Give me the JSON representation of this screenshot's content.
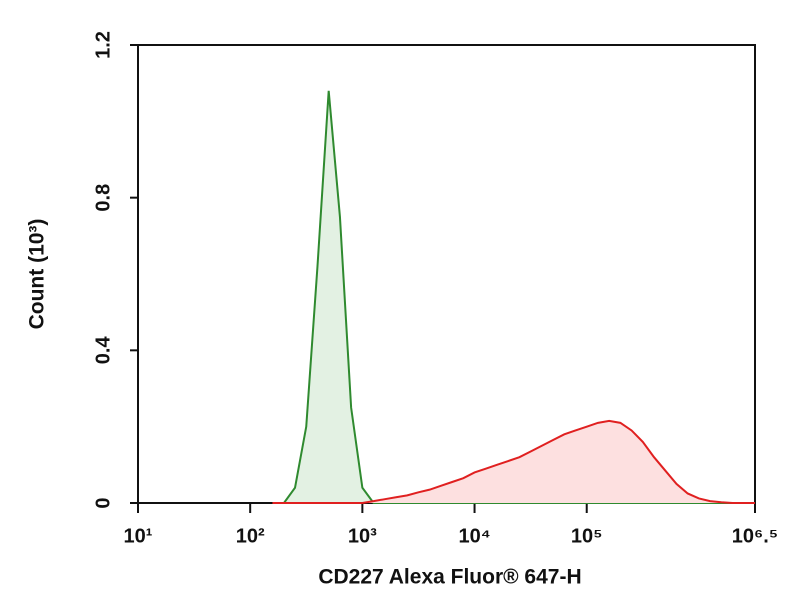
{
  "chart_data": {
    "type": "histogram",
    "xlabel": "CD227 Alexa Fluor® 647-H",
    "ylabel": "Count (10³)",
    "xscale": "log",
    "xlim": [
      10,
      3162278
    ],
    "xticks": [
      {
        "value": 10,
        "label": "10¹"
      },
      {
        "value": 100,
        "label": "10²"
      },
      {
        "value": 1000,
        "label": "10³"
      },
      {
        "value": 10000,
        "label": "10⁴"
      },
      {
        "value": 100000,
        "label": "10⁵"
      },
      {
        "value": 3162278,
        "label": "10⁶.⁵"
      }
    ],
    "ylim": [
      0,
      1.2
    ],
    "yticks": [
      0,
      0.4,
      0.8,
      1.2
    ],
    "x": [
      158,
      200,
      251,
      316,
      398,
      501,
      631,
      794,
      1000,
      1259,
      1585,
      1995,
      2512,
      3162,
      3981,
      5012,
      6310,
      7943,
      10000,
      12589,
      15849,
      19953,
      25119,
      31623,
      39811,
      50119,
      63096,
      79433,
      100000,
      125893,
      158489,
      199526,
      251189,
      316228,
      398107,
      501187,
      630957,
      794328,
      1000000,
      1258925,
      1584893,
      1995262,
      2511886,
      3162278
    ],
    "series": [
      {
        "color": "#2f8a2f",
        "fill": "#e3f1e3",
        "values": [
          0,
          0,
          0.04,
          0.2,
          0.62,
          1.08,
          0.75,
          0.25,
          0.04,
          0,
          0,
          0,
          0,
          0,
          0,
          0,
          0,
          0,
          0,
          0,
          0,
          0,
          0,
          0,
          0,
          0,
          0,
          0,
          0,
          0,
          0,
          0,
          0,
          0,
          0,
          0,
          0,
          0,
          0,
          0,
          0,
          0,
          0,
          0
        ]
      },
      {
        "color": "#e02020",
        "fill": "#fde0e0",
        "values": [
          0,
          0,
          0,
          0,
          0,
          0,
          0,
          0,
          0,
          0.005,
          0.01,
          0.015,
          0.02,
          0.028,
          0.035,
          0.045,
          0.055,
          0.065,
          0.08,
          0.09,
          0.1,
          0.11,
          0.12,
          0.135,
          0.15,
          0.165,
          0.18,
          0.19,
          0.2,
          0.21,
          0.215,
          0.21,
          0.19,
          0.16,
          0.12,
          0.085,
          0.05,
          0.025,
          0.012,
          0.005,
          0.002,
          0,
          0,
          0
        ]
      }
    ]
  }
}
